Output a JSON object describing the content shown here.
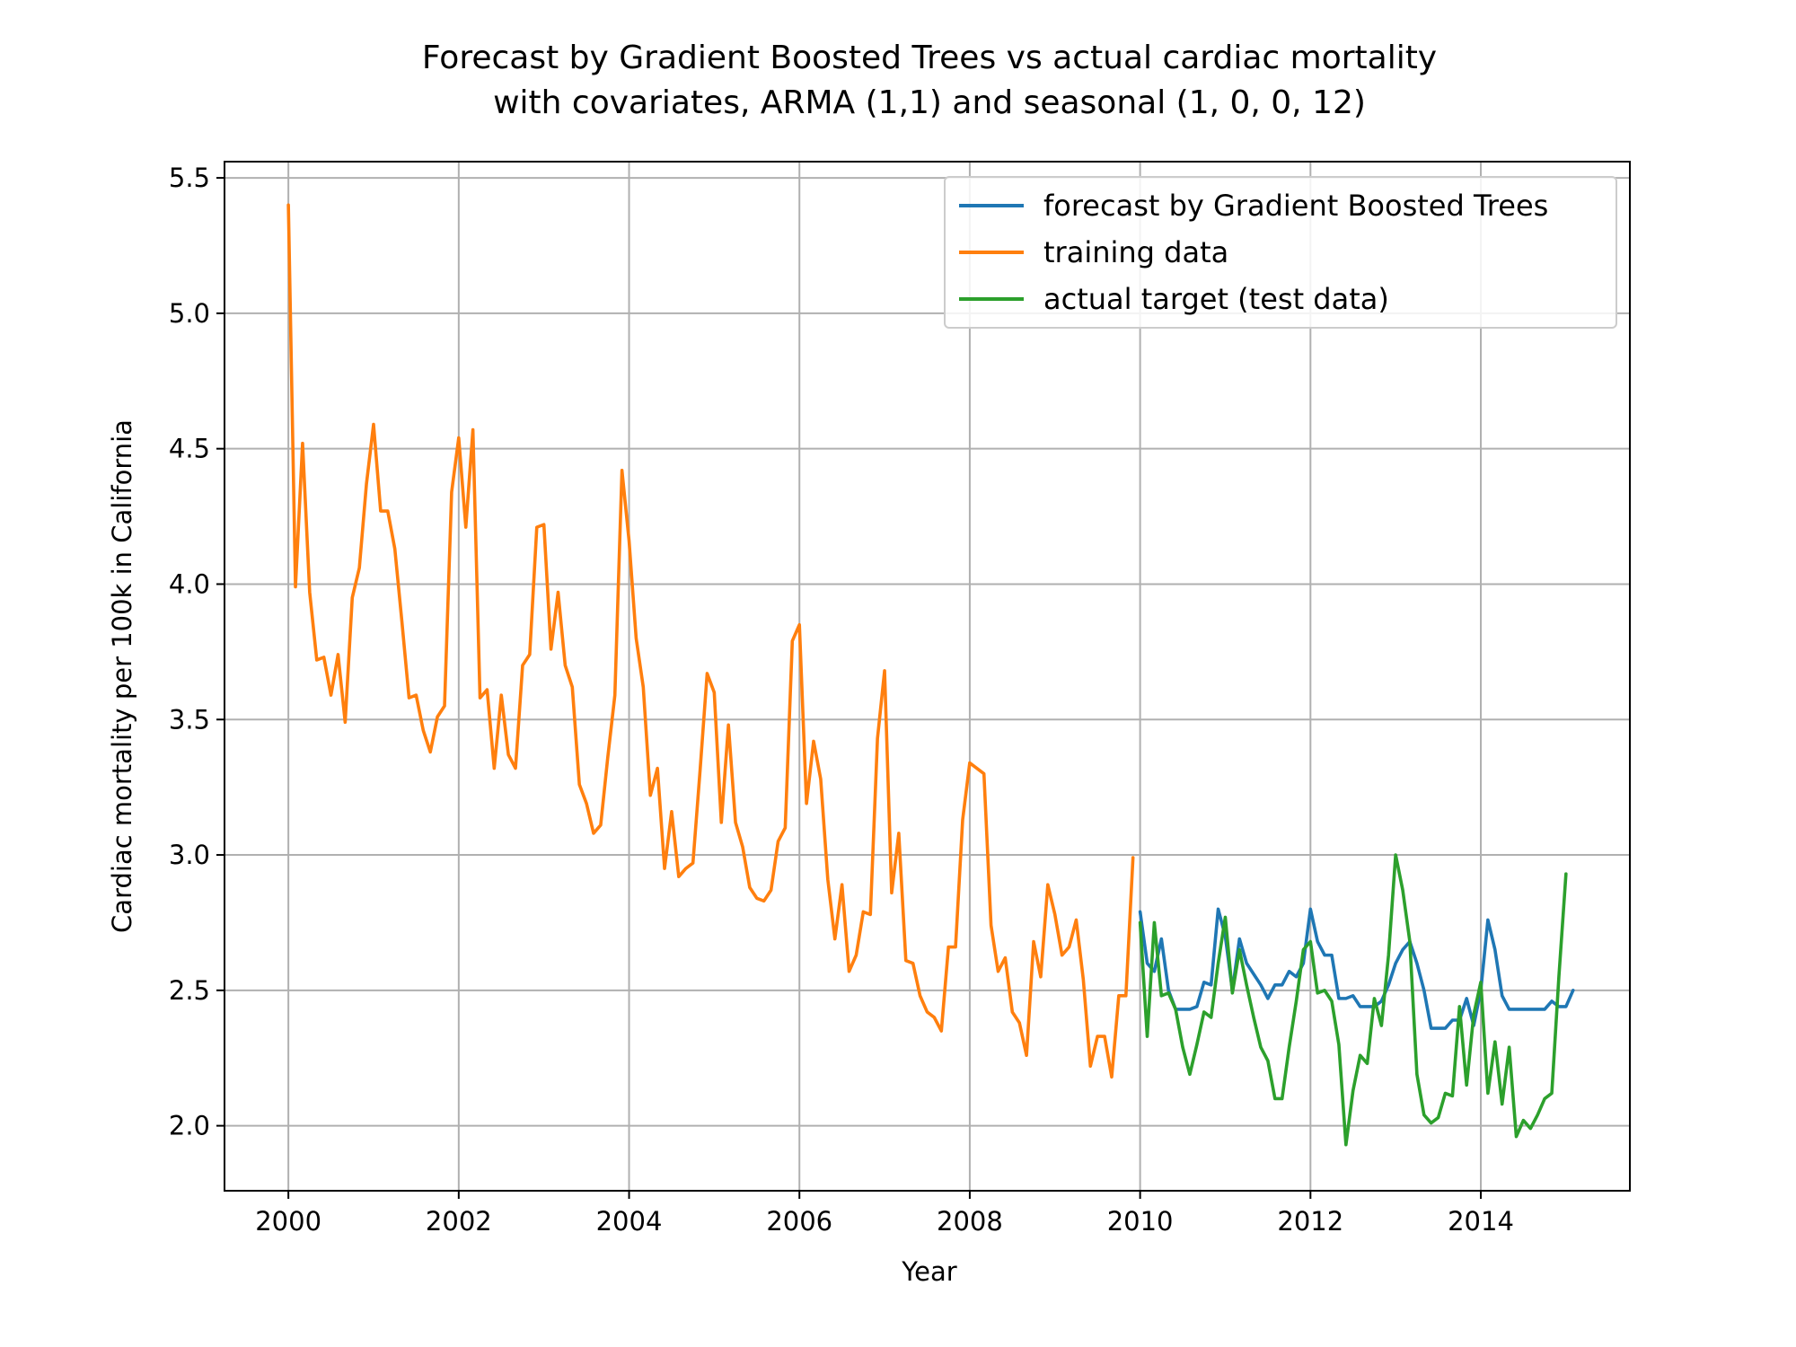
{
  "chart_data": {
    "type": "line",
    "title": "Forecast by Gradient Boosted Trees vs actual cardiac mortality",
    "subtitle": "with covariates, ARMA (1,1) and seasonal (1, 0, 0, 12)",
    "xlabel": "Year",
    "ylabel": "Cardiac mortality per 100k in California",
    "xlim": [
      1999.25,
      2015.75
    ],
    "ylim": [
      1.76,
      5.56
    ],
    "x_ticks": [
      2000,
      2002,
      2004,
      2006,
      2008,
      2010,
      2012,
      2014
    ],
    "y_ticks": [
      2.0,
      2.5,
      3.0,
      3.5,
      4.0,
      4.5,
      5.0,
      5.5
    ],
    "x_tick_labels": [
      "2000",
      "2002",
      "2004",
      "2006",
      "2008",
      "2010",
      "2012",
      "2014"
    ],
    "y_tick_labels": [
      "2.0",
      "2.5",
      "3.0",
      "3.5",
      "4.0",
      "4.5",
      "5.0",
      "5.5"
    ],
    "grid": true,
    "legend_position": "top-right",
    "series": [
      {
        "name": "forecast by Gradient Boosted Trees",
        "color": "#1f77b4",
        "x_start": 2010.0,
        "x_step": 0.08333,
        "values": [
          2.79,
          2.6,
          2.57,
          2.69,
          2.5,
          2.43,
          2.43,
          2.43,
          2.44,
          2.53,
          2.52,
          2.8,
          2.7,
          2.5,
          2.69,
          2.6,
          2.56,
          2.52,
          2.47,
          2.52,
          2.52,
          2.57,
          2.55,
          2.6,
          2.8,
          2.68,
          2.63,
          2.63,
          2.47,
          2.47,
          2.48,
          2.44,
          2.44,
          2.44,
          2.46,
          2.52,
          2.6,
          2.65,
          2.68,
          2.6,
          2.5,
          2.36,
          2.36,
          2.36,
          2.39,
          2.39,
          2.47,
          2.37,
          2.5,
          2.76,
          2.65,
          2.48,
          2.43,
          2.43,
          2.43,
          2.43,
          2.43,
          2.43,
          2.46,
          2.44,
          2.44,
          2.5
        ]
      },
      {
        "name": "training data",
        "color": "#ff7f0e",
        "x_start": 2000.0,
        "x_step": 0.08333,
        "values": [
          5.4,
          3.99,
          4.52,
          3.97,
          3.72,
          3.73,
          3.59,
          3.74,
          3.49,
          3.95,
          4.06,
          4.37,
          4.59,
          4.27,
          4.27,
          4.13,
          3.86,
          3.58,
          3.59,
          3.46,
          3.38,
          3.51,
          3.55,
          4.34,
          4.54,
          4.21,
          4.57,
          3.58,
          3.61,
          3.32,
          3.59,
          3.37,
          3.32,
          3.7,
          3.74,
          4.21,
          4.22,
          3.76,
          3.97,
          3.7,
          3.62,
          3.26,
          3.19,
          3.08,
          3.11,
          3.36,
          3.59,
          4.42,
          4.16,
          3.8,
          3.62,
          3.22,
          3.32,
          2.95,
          3.16,
          2.92,
          2.95,
          2.97,
          3.31,
          3.67,
          3.6,
          3.12,
          3.48,
          3.12,
          3.03,
          2.88,
          2.84,
          2.83,
          2.87,
          3.05,
          3.1,
          3.79,
          3.85,
          3.19,
          3.42,
          3.28,
          2.91,
          2.69,
          2.89,
          2.57,
          2.63,
          2.79,
          2.78,
          3.43,
          3.68,
          2.86,
          3.08,
          2.61,
          2.6,
          2.48,
          2.42,
          2.4,
          2.35,
          2.66,
          2.66,
          3.13,
          3.34,
          3.32,
          3.3,
          2.74,
          2.57,
          2.62,
          2.42,
          2.38,
          2.26,
          2.68,
          2.55,
          2.89,
          2.78,
          2.63,
          2.66,
          2.76,
          2.54,
          2.22,
          2.33,
          2.33,
          2.18,
          2.48,
          2.48,
          2.99
        ]
      },
      {
        "name": "actual target (test data)",
        "color": "#2ca02c",
        "x_start": 2010.0,
        "x_step": 0.08333,
        "values": [
          2.75,
          2.33,
          2.75,
          2.48,
          2.49,
          2.43,
          2.29,
          2.19,
          2.3,
          2.42,
          2.4,
          2.6,
          2.77,
          2.49,
          2.65,
          2.52,
          2.4,
          2.29,
          2.24,
          2.1,
          2.1,
          2.29,
          2.46,
          2.65,
          2.68,
          2.49,
          2.5,
          2.46,
          2.3,
          1.93,
          2.13,
          2.26,
          2.23,
          2.47,
          2.37,
          2.63,
          3.0,
          2.87,
          2.68,
          2.19,
          2.04,
          2.01,
          2.03,
          2.12,
          2.11,
          2.44,
          2.15,
          2.41,
          2.53,
          2.12,
          2.31,
          2.08,
          2.29,
          1.96,
          2.02,
          1.99,
          2.04,
          2.1,
          2.12,
          2.55,
          2.93
        ]
      }
    ]
  }
}
